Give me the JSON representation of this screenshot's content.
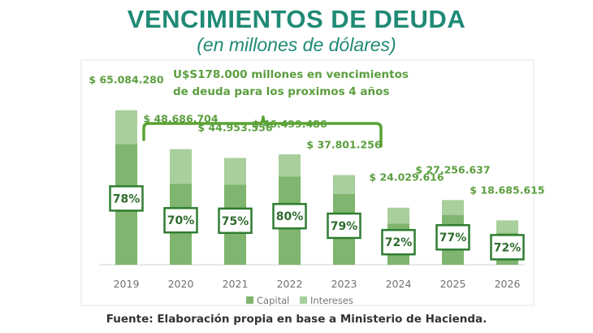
{
  "header": {
    "title": "VENCIMIENTOS DE DEUDA",
    "subtitle": "(en millones de dólares)"
  },
  "annotation": {
    "line1": "U$S178.000 millones en vencimientos",
    "line2": "de deuda para los proximos 4 años"
  },
  "footer": {
    "source": "Fuente: Elaboración propia en base a Ministerio de Hacienda."
  },
  "colors": {
    "title": "#1f8a75",
    "capital": "#7fb56e",
    "intereses": "#a9cf9c",
    "label": "#5b9e3f",
    "bracket": "#5aa233",
    "box_border": "#2f7d32"
  },
  "chart_data": {
    "type": "bar",
    "stacked": true,
    "categories": [
      "2019",
      "2020",
      "2021",
      "2022",
      "2023",
      "2024",
      "2025",
      "2026"
    ],
    "totals": [
      65084280,
      48686704,
      44953556,
      46499486,
      37801256,
      24029616,
      27256637,
      18685615
    ],
    "total_labels": [
      "$ 65.084.280",
      "$ 48.686.704",
      "$ 44.953.556",
      "$ 46.499.486",
      "$ 37.801.256",
      "$ 24.029.616",
      "$ 27.256.637",
      "$ 18.685.615"
    ],
    "capital_share": [
      0.78,
      0.7,
      0.75,
      0.8,
      0.79,
      0.72,
      0.77,
      0.72
    ],
    "share_labels": [
      "78%",
      "70%",
      "75%",
      "80%",
      "79%",
      "72%",
      "77%",
      "72%"
    ],
    "series": [
      {
        "name": "Capital"
      },
      {
        "name": "Intereses"
      }
    ],
    "legend_position": "bottom",
    "grid": false,
    "ylim": [
      0,
      72000000
    ]
  }
}
